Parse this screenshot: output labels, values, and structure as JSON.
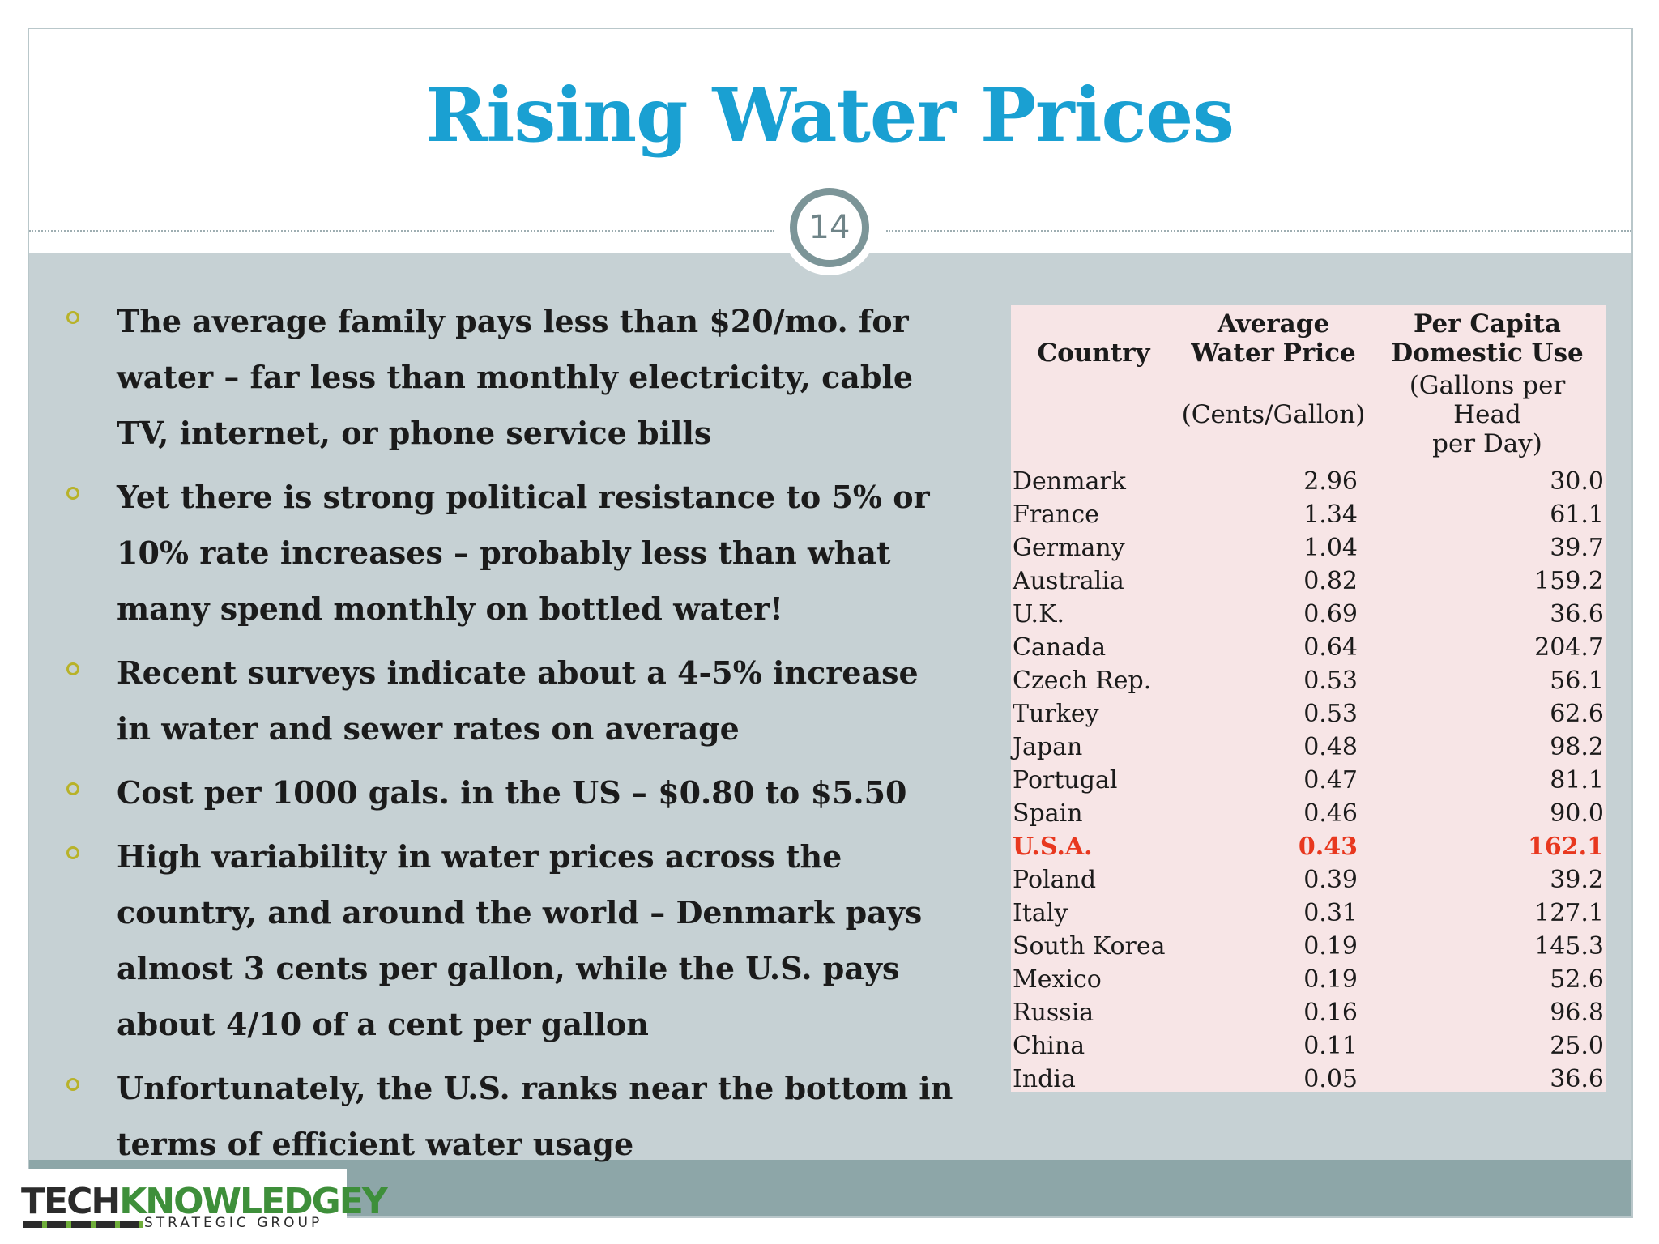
{
  "slide": {
    "title": "Rising Water Prices",
    "page_number": "14",
    "colors": {
      "title": "#1aa0d2",
      "highlight": "#e8381f",
      "bullet_marker": "#b8b229",
      "panel": "#c6d1d4",
      "table_bg": "#f7e5e6"
    }
  },
  "bullets": [
    "The average family pays less than $20/mo. for water – far less than monthly electricity, cable TV, internet, or phone service bills",
    "Yet there is strong political resistance to 5% or 10% rate increases – probably less than what many spend monthly on bottled water!",
    "Recent surveys indicate about a 4-5% increase in water and sewer rates on average",
    "Cost per 1000 gals. in the US – $0.80 to $5.50",
    "High variability in water prices across the country, and around the world – Denmark pays almost 3 cents per gallon, while the U.S. pays about 4/10 of a cent per gallon",
    "Unfortunately, the U.S. ranks near the bottom in terms of efficient water usage"
  ],
  "table": {
    "headers": {
      "country": "Country",
      "price_line1": "Average",
      "price_line2": "Water Price",
      "price_unit": "(Cents/Gallon)",
      "use_line1": "Per  Capita",
      "use_line2": "Domestic Use",
      "use_unit_line1": "(Gallons per Head",
      "use_unit_line2": "per Day)"
    },
    "rows": [
      {
        "country": "Denmark",
        "price": "2.96",
        "use": "30.0"
      },
      {
        "country": "France",
        "price": "1.34",
        "use": "61.1"
      },
      {
        "country": "Germany",
        "price": "1.04",
        "use": "39.7"
      },
      {
        "country": "Australia",
        "price": "0.82",
        "use": "159.2"
      },
      {
        "country": "U.K.",
        "price": "0.69",
        "use": "36.6"
      },
      {
        "country": "Canada",
        "price": "0.64",
        "use": "204.7"
      },
      {
        "country": "Czech Rep.",
        "price": "0.53",
        "use": "56.1"
      },
      {
        "country": "Turkey",
        "price": "0.53",
        "use": "62.6"
      },
      {
        "country": "Japan",
        "price": "0.48",
        "use": "98.2"
      },
      {
        "country": "Portugal",
        "price": "0.47",
        "use": "81.1"
      },
      {
        "country": "Spain",
        "price": "0.46",
        "use": "90.0"
      },
      {
        "country": "U.S.A.",
        "price": "0.43",
        "use": "162.1",
        "highlight": true
      },
      {
        "country": "Poland",
        "price": "0.39",
        "use": "39.2"
      },
      {
        "country": "Italy",
        "price": "0.31",
        "use": "127.1"
      },
      {
        "country": "South Korea",
        "price": "0.19",
        "use": "145.3"
      },
      {
        "country": "Mexico",
        "price": "0.19",
        "use": "52.6"
      },
      {
        "country": "Russia",
        "price": "0.16",
        "use": "96.8"
      },
      {
        "country": "China",
        "price": "0.11",
        "use": "25.0"
      },
      {
        "country": "India",
        "price": "0.05",
        "use": "36.6"
      }
    ]
  },
  "logo": {
    "word1": "TECH",
    "word2": "KNOWLEDGEY",
    "subtitle": "STRATEGIC GROUP"
  }
}
